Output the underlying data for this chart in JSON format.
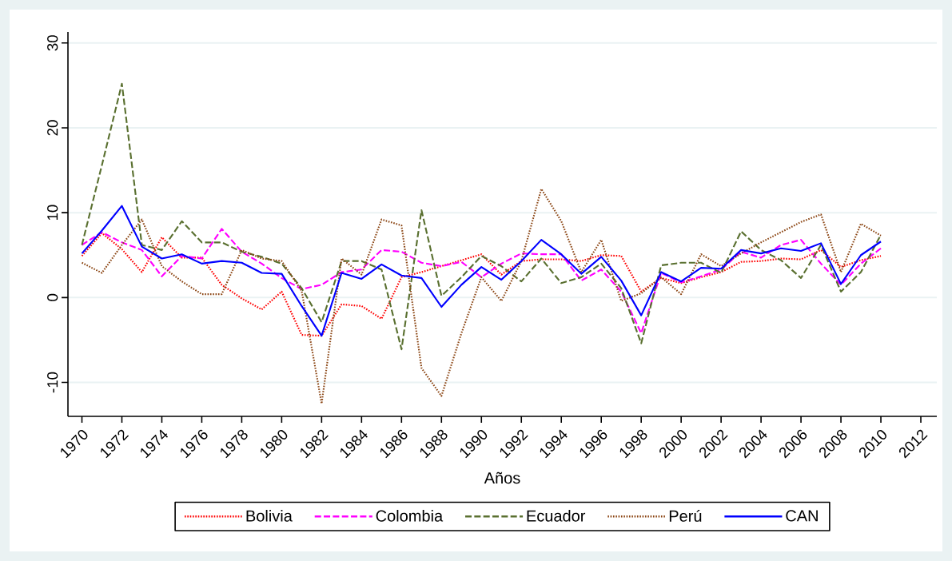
{
  "chart_data": {
    "type": "line",
    "xlabel": "Años",
    "x": [
      1970,
      1971,
      1972,
      1973,
      1974,
      1975,
      1976,
      1977,
      1978,
      1979,
      1980,
      1981,
      1982,
      1983,
      1984,
      1985,
      1986,
      1987,
      1988,
      1989,
      1990,
      1991,
      1992,
      1993,
      1994,
      1995,
      1996,
      1997,
      1998,
      1999,
      2000,
      2001,
      2002,
      2003,
      2004,
      2005,
      2006,
      2007,
      2008,
      2009,
      2010
    ],
    "series": [
      {
        "name": "Bolivia",
        "color": "#ff0000",
        "line_style": "dotted",
        "values": [
          4.9,
          7.6,
          5.7,
          3.0,
          7.1,
          4.7,
          4.7,
          1.5,
          -0.1,
          -1.4,
          0.7,
          -4.4,
          -4.5,
          -0.8,
          -1.0,
          -2.5,
          2.4,
          3.0,
          3.7,
          4.4,
          5.1,
          2.7,
          4.3,
          4.5,
          4.5,
          4.3,
          5.0,
          4.9,
          0.7,
          2.3,
          1.7,
          2.4,
          3.0,
          4.2,
          4.3,
          4.6,
          4.5,
          5.6,
          3.6,
          4.4,
          4.9
        ]
      },
      {
        "name": "Colombia",
        "color": "#ff00ff",
        "line_style": "dashed",
        "values": [
          6.2,
          7.7,
          6.5,
          5.6,
          2.5,
          4.9,
          4.6,
          8.1,
          5.4,
          4.0,
          2.3,
          1.0,
          1.5,
          3.0,
          3.3,
          5.6,
          5.4,
          4.1,
          3.7,
          4.2,
          2.4,
          4.0,
          5.2,
          5.1,
          5.1,
          2.0,
          3.3,
          0.7,
          -4.2,
          2.9,
          1.8,
          2.5,
          3.3,
          5.4,
          4.7,
          6.2,
          6.8,
          4.0,
          1.5,
          4.0,
          5.8
        ]
      },
      {
        "name": "Ecuador",
        "color": "#5a7030",
        "line_style": "dashed",
        "values": [
          6.2,
          15.6,
          25.2,
          6.2,
          5.6,
          9.0,
          6.5,
          6.5,
          5.4,
          4.8,
          4.0,
          1.1,
          -2.9,
          4.3,
          4.3,
          3.3,
          -6.1,
          10.3,
          0.2,
          2.4,
          4.9,
          3.7,
          1.9,
          4.6,
          1.7,
          2.4,
          4.0,
          1.1,
          -5.4,
          3.8,
          4.1,
          4.1,
          2.9,
          7.8,
          5.6,
          4.4,
          2.3,
          6.2,
          0.7,
          3.0,
          7.4
        ]
      },
      {
        "name": "Perú",
        "color": "#8b4513",
        "line_style": "dotted",
        "values": [
          4.1,
          2.9,
          6.2,
          9.2,
          3.7,
          1.9,
          0.4,
          0.4,
          5.6,
          4.6,
          4.3,
          0.8,
          -12.5,
          4.6,
          2.7,
          9.2,
          8.5,
          -8.3,
          -11.6,
          -4.2,
          2.4,
          -0.4,
          4.3,
          12.8,
          9.0,
          3.0,
          6.8,
          -0.4,
          0.5,
          2.4,
          0.4,
          5.1,
          3.7,
          5.2,
          6.5,
          7.7,
          8.9,
          9.8,
          3.0,
          8.7,
          7.3
        ]
      },
      {
        "name": "CAN",
        "color": "#0000ff",
        "line_style": "solid",
        "values": [
          5.2,
          7.9,
          10.8,
          6.0,
          4.6,
          5.1,
          4.0,
          4.3,
          4.1,
          2.9,
          2.8,
          -1.0,
          -4.5,
          2.9,
          2.2,
          3.9,
          2.6,
          2.3,
          -1.1,
          1.5,
          3.6,
          2.1,
          4.3,
          6.8,
          5.1,
          2.8,
          4.8,
          2.0,
          -2.1,
          3.0,
          1.9,
          3.5,
          3.4,
          5.6,
          5.2,
          5.8,
          5.5,
          6.4,
          1.6,
          5.0,
          6.6
        ]
      }
    ],
    "xlim": [
      1969.3,
      2012.8
    ],
    "ylim": [
      -14,
      31.3
    ],
    "xticks": [
      1970,
      1972,
      1974,
      1976,
      1978,
      1980,
      1982,
      1984,
      1986,
      1988,
      1990,
      1992,
      1994,
      1996,
      1998,
      2000,
      2002,
      2004,
      2006,
      2008,
      2010,
      2012
    ],
    "yticks": [
      -10,
      0,
      10,
      20,
      30
    ],
    "grid": "y",
    "legend": "bottom"
  }
}
